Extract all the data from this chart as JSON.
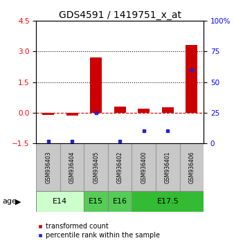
{
  "title": "GDS4591 / 1419751_x_at",
  "samples": [
    "GSM936403",
    "GSM936404",
    "GSM936405",
    "GSM936402",
    "GSM936400",
    "GSM936401",
    "GSM936406"
  ],
  "red_values": [
    -0.1,
    -0.15,
    2.72,
    0.3,
    0.2,
    0.28,
    3.3
  ],
  "blue_values": [
    2,
    2,
    25,
    2,
    10,
    10,
    60
  ],
  "ylim_left": [
    -1.5,
    4.5
  ],
  "ylim_right": [
    0,
    100
  ],
  "yticks_left": [
    -1.5,
    0,
    1.5,
    3.0,
    4.5
  ],
  "yticks_right": [
    0,
    25,
    50,
    75,
    100
  ],
  "groups": [
    {
      "label": "E14",
      "start": 0,
      "end": 2,
      "color": "#ccffcc"
    },
    {
      "label": "E15",
      "start": 2,
      "end": 3,
      "color": "#55cc55"
    },
    {
      "label": "E16",
      "start": 3,
      "end": 4,
      "color": "#55cc55"
    },
    {
      "label": "E17.5",
      "start": 4,
      "end": 7,
      "color": "#33bb33"
    }
  ],
  "bar_color": "#cc0000",
  "blue_color": "#2222cc",
  "sample_box_color": "#c8c8c8",
  "zero_line_color": "#cc0000",
  "hline_color": "#111111",
  "age_label": "age",
  "legend_red": "transformed count",
  "legend_blue": "percentile rank within the sample",
  "title_fontsize": 10,
  "tick_fontsize": 7.5,
  "bar_width": 0.5
}
